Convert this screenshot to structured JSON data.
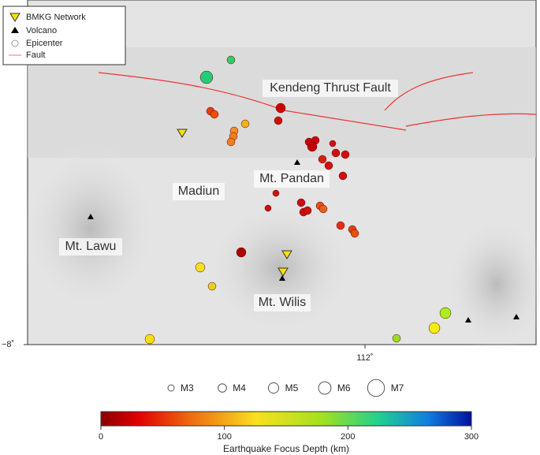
{
  "legend": {
    "items": [
      "BMKG Network",
      "Volcano",
      "Epicenter",
      "Fault"
    ]
  },
  "places": {
    "fault": "Kendeng Thrust Fault",
    "pandan": "Mt. Pandan",
    "madiun": "Madiun",
    "lawu": "Mt. Lawu",
    "wilis": "Mt. Wilis"
  },
  "axes": {
    "x_tick": "112˚",
    "y_tick": "−8˚"
  },
  "magnitude_legend": [
    "M3",
    "M4",
    "M5",
    "M6",
    "M7"
  ],
  "colorbar": {
    "label": "Earthquake Focus Depth (km)",
    "lim": [
      0,
      300
    ],
    "ticks": [
      0,
      100,
      200,
      300
    ]
  }
}
